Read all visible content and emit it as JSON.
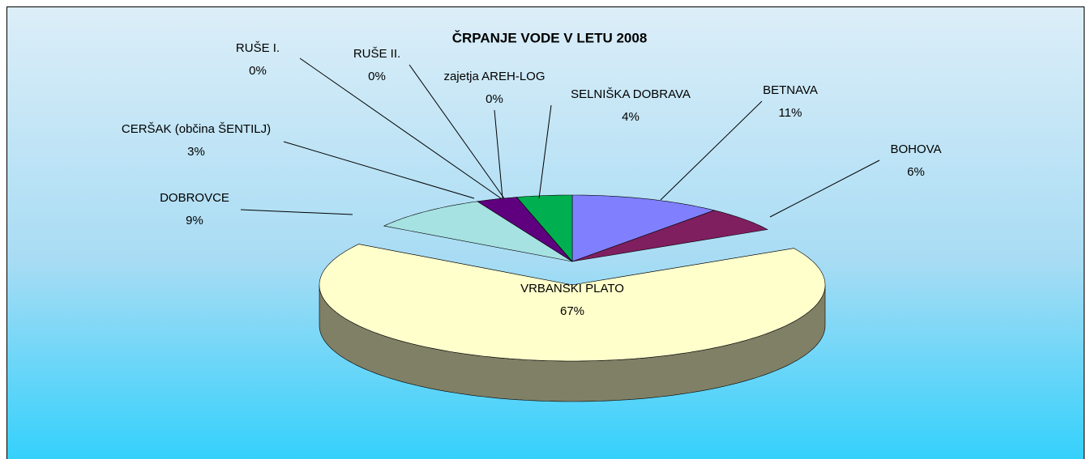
{
  "chart_data": {
    "type": "pie3d",
    "title": "ČRPANJE VODE V LETU 2008",
    "categories": [
      "BETNAVA",
      "BOHOVA",
      "VRBANSKI PLATO",
      "DOBROVCE",
      "CERŠAK (občina ŠENTILJ)",
      "RUŠE I.",
      "RUŠE II.",
      "zajetja AREH-LOG",
      "SELNIŠKA DOBRAVA"
    ],
    "values": [
      11,
      6,
      67,
      9,
      3,
      0,
      0,
      0,
      4
    ],
    "value_labels": [
      "11%",
      "6%",
      "67%",
      "9%",
      "3%",
      "0%",
      "0%",
      "0%",
      "4%"
    ],
    "colors": [
      "#8080ff",
      "#7f1f5f",
      "#ffffcc",
      "#a6e2e2",
      "#5f007f",
      "#ff8080",
      "#0066cc",
      "#ccccff",
      "#00b050"
    ],
    "explode": [
      false,
      false,
      true,
      false,
      false,
      false,
      false,
      false,
      false
    ]
  }
}
